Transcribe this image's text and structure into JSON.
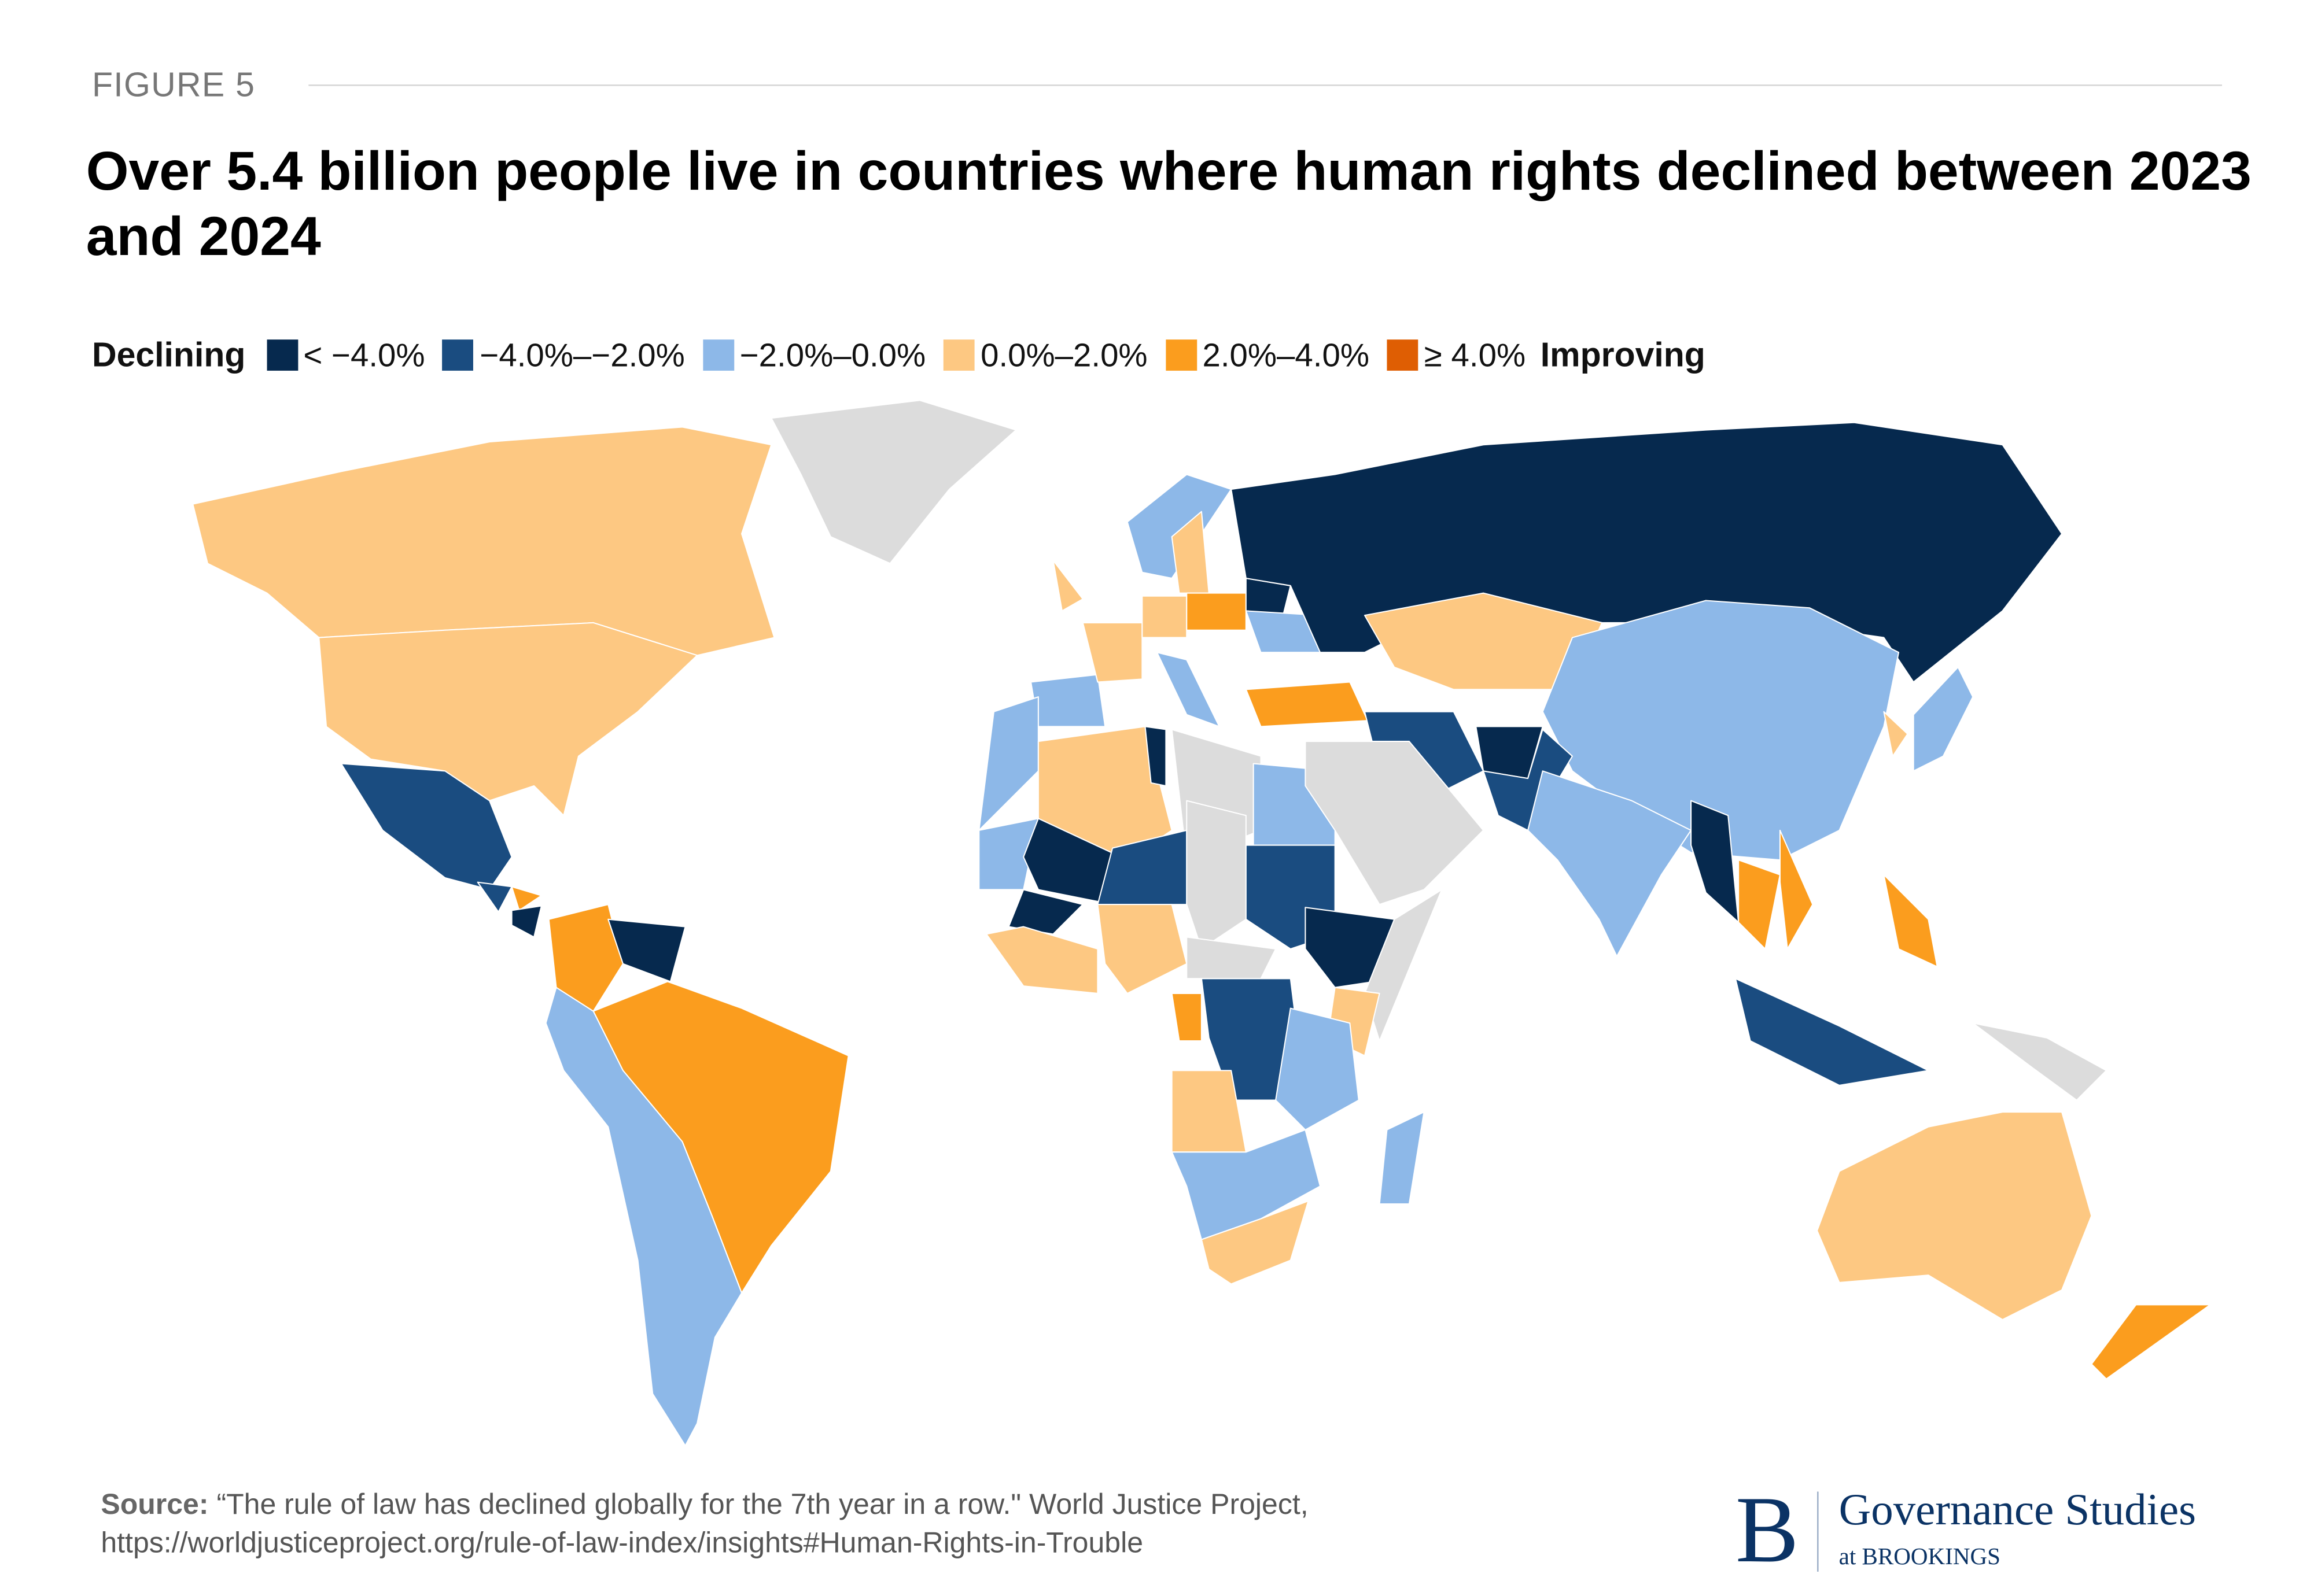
{
  "header": {
    "figure_label": "FIGURE 5",
    "title": "Over 5.4 billion people live in countries where human rights declined between 2023 and 2024"
  },
  "legend": {
    "start_label": "Declining",
    "end_label": "Improving",
    "bins": [
      {
        "label": "< −4.0%",
        "color": "#06294e"
      },
      {
        "label": "−4.0%–−2.0%",
        "color": "#1a4c80"
      },
      {
        "label": "−2.0%–0.0%",
        "color": "#8db8e8"
      },
      {
        "label": "0.0%–2.0%",
        "color": "#fdc882"
      },
      {
        "label": "2.0%–4.0%",
        "color": "#fb9d1e"
      },
      {
        "label": "≥ 4.0%",
        "color": "#df5e03"
      }
    ],
    "no_data_color": "#dcdcdc"
  },
  "chart_data": {
    "type": "choropleth",
    "title": "Over 5.4 billion people live in countries where human rights declined between 2023 and 2024",
    "regions": [
      {
        "country": "Canada",
        "bin": 3
      },
      {
        "country": "United States",
        "bin": 3
      },
      {
        "country": "Greenland",
        "bin": null
      },
      {
        "country": "Mexico",
        "bin": 1
      },
      {
        "country": "Guatemala",
        "bin": 1
      },
      {
        "country": "Honduras",
        "bin": 4
      },
      {
        "country": "Nicaragua",
        "bin": 0
      },
      {
        "country": "Colombia",
        "bin": 4
      },
      {
        "country": "Venezuela",
        "bin": 0
      },
      {
        "country": "Brazil",
        "bin": 4
      },
      {
        "country": "Peru, Bolivia, Chile, Argentina",
        "bin": 2
      },
      {
        "country": "Spain",
        "bin": 2
      },
      {
        "country": "France",
        "bin": 3
      },
      {
        "country": "United Kingdom",
        "bin": 3
      },
      {
        "country": "Norway",
        "bin": 2
      },
      {
        "country": "Sweden",
        "bin": 3
      },
      {
        "country": "Germany",
        "bin": 3
      },
      {
        "country": "Poland",
        "bin": 4
      },
      {
        "country": "Belarus",
        "bin": 0
      },
      {
        "country": "Ukraine",
        "bin": 2
      },
      {
        "country": "Italy",
        "bin": 2
      },
      {
        "country": "Turkey",
        "bin": 4
      },
      {
        "country": "Russia",
        "bin": 0
      },
      {
        "country": "Kazakhstan",
        "bin": 3
      },
      {
        "country": "China",
        "bin": 2
      },
      {
        "country": "Iran",
        "bin": 1
      },
      {
        "country": "Afghanistan",
        "bin": 0
      },
      {
        "country": "Pakistan",
        "bin": 1
      },
      {
        "country": "India",
        "bin": 2
      },
      {
        "country": "Myanmar",
        "bin": 0
      },
      {
        "country": "Thailand",
        "bin": 4
      },
      {
        "country": "Vietnam",
        "bin": 4
      },
      {
        "country": "Philippines",
        "bin": 4
      },
      {
        "country": "Indonesia",
        "bin": 1
      },
      {
        "country": "Papua New Guinea",
        "bin": null
      },
      {
        "country": "Australia",
        "bin": 3
      },
      {
        "country": "New Zealand",
        "bin": 4
      },
      {
        "country": "Japan",
        "bin": 2
      },
      {
        "country": "South Korea",
        "bin": 3
      },
      {
        "country": "Morocco",
        "bin": 2
      },
      {
        "country": "Algeria",
        "bin": 3
      },
      {
        "country": "Tunisia",
        "bin": 0
      },
      {
        "country": "Libya",
        "bin": null
      },
      {
        "country": "Egypt",
        "bin": 2
      },
      {
        "country": "Saudi Arabia",
        "bin": null
      },
      {
        "country": "Mauritania",
        "bin": 2
      },
      {
        "country": "Mali",
        "bin": 0
      },
      {
        "country": "Burkina Faso",
        "bin": 0
      },
      {
        "country": "Niger",
        "bin": 1
      },
      {
        "country": "Chad",
        "bin": null
      },
      {
        "country": "Sudan",
        "bin": 1
      },
      {
        "country": "Ethiopia",
        "bin": 0
      },
      {
        "country": "Somalia",
        "bin": null
      },
      {
        "country": "Kenya",
        "bin": 3
      },
      {
        "country": "Nigeria",
        "bin": 3
      },
      {
        "country": "Ghana",
        "bin": 3
      },
      {
        "country": "Central African Republic",
        "bin": null
      },
      {
        "country": "DR Congo",
        "bin": 1
      },
      {
        "country": "Gabon",
        "bin": 4
      },
      {
        "country": "Angola",
        "bin": 3
      },
      {
        "country": "Tanzania",
        "bin": 2
      },
      {
        "country": "Zambia, Namibia, Botswana",
        "bin": 2
      },
      {
        "country": "South Africa",
        "bin": 3
      },
      {
        "country": "Madagascar",
        "bin": 2
      }
    ]
  },
  "footer": {
    "source_label": "Source:",
    "source_text": "“The rule of law has declined globally for the 7th year in a row.\" World Justice Project,",
    "source_url": "https://worldjusticeproject.org/rule-of-law-index/insights#Human-Rights-in-Trouble",
    "logo_letter": "B",
    "logo_name": "Governance Studies",
    "logo_sub": "at BROOKINGS"
  }
}
